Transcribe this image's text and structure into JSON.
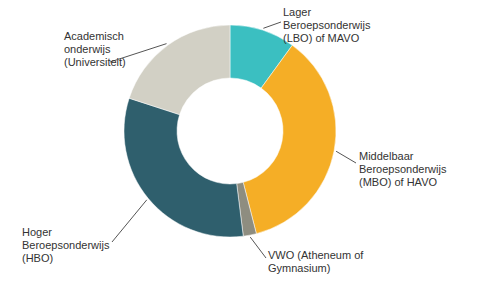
{
  "chart_data": {
    "type": "donut",
    "categories": [
      "Lager Beroepsonderwijs (LBO) of MAVO",
      "Middelbaar Beroepsonderwijs (MBO) of HAVO",
      "VWO (Atheneum of Gymnasium)",
      "Hoger Beroepsonderwijs (HBO)",
      "Academisch onderwijs (Universiteit)"
    ],
    "values": [
      10,
      36,
      2,
      32,
      20
    ],
    "colors": [
      "#3bbfc1",
      "#f5ae26",
      "#8e8d80",
      "#2f5f6d",
      "#d2d0c5"
    ]
  }
}
